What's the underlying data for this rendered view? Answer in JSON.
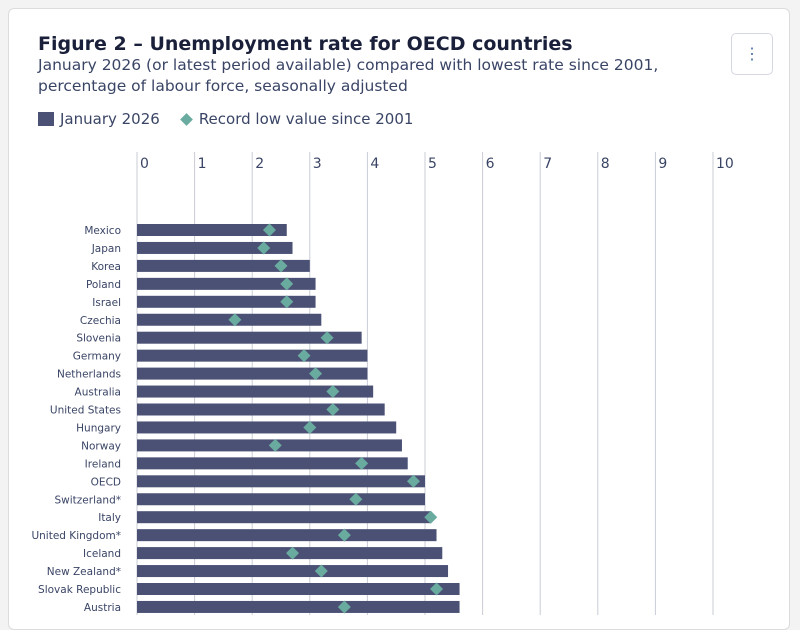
{
  "menu": {
    "icon": "more-vertical-icon",
    "glyph": "⋮"
  },
  "legend": {
    "bar_label": "January 2026",
    "marker_label": "Record low value since 2001"
  },
  "colors": {
    "bar": "#4b5175",
    "marker": "#6aab9f",
    "grid": "#c9ccd6"
  },
  "chart_data": {
    "type": "bar",
    "orientation": "horizontal",
    "title": "Figure 2 – Unemployment rate for OECD countries",
    "subtitle": "January 2026 (or latest period available) compared with lowest rate since 2001, percentage of labour force, seasonally adjusted",
    "xlim": [
      0,
      10
    ],
    "x_ticks": [
      "0",
      "1",
      "2",
      "3",
      "4",
      "5",
      "6",
      "7",
      "8",
      "9",
      "10"
    ],
    "grid": true,
    "legend_position": "top-left",
    "categories": [
      "Mexico",
      "Japan",
      "Korea",
      "Poland",
      "Israel",
      "Czechia",
      "Slovenia",
      "Germany",
      "Netherlands",
      "Australia",
      "United States",
      "Hungary",
      "Norway",
      "Ireland",
      "OECD",
      "Switzerland*",
      "Italy",
      "United Kingdom*",
      "Iceland",
      "New Zealand*",
      "Slovak Republic",
      "Austria"
    ],
    "series": [
      {
        "name": "January 2026",
        "kind": "bar",
        "values": [
          2.6,
          2.7,
          3.0,
          3.1,
          3.1,
          3.2,
          3.9,
          4.0,
          4.0,
          4.1,
          4.3,
          4.5,
          4.6,
          4.7,
          5.0,
          5.0,
          5.1,
          5.2,
          5.3,
          5.4,
          5.6,
          5.6
        ]
      },
      {
        "name": "Record low value since 2001",
        "kind": "marker",
        "values": [
          2.3,
          2.2,
          2.5,
          2.6,
          2.6,
          1.7,
          3.3,
          2.9,
          3.1,
          3.4,
          3.4,
          3.0,
          2.4,
          3.9,
          4.8,
          3.8,
          5.1,
          3.6,
          2.7,
          3.2,
          5.2,
          3.6
        ]
      }
    ]
  }
}
